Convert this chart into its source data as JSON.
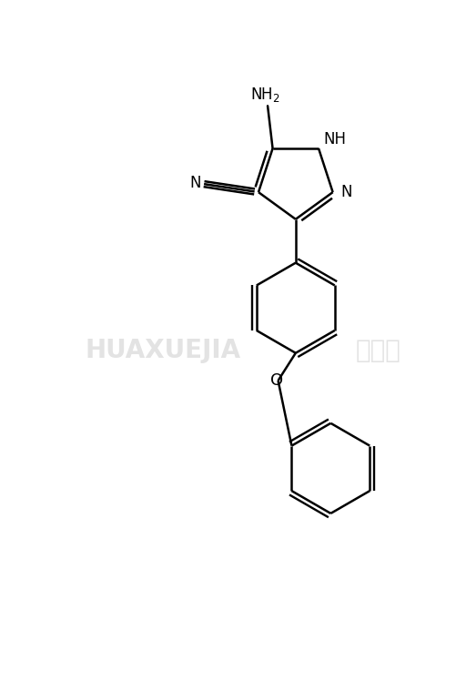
{
  "background_color": "#ffffff",
  "line_color": "#000000",
  "line_width": 1.8,
  "watermark_text": "HUAXUEJIA",
  "watermark_cn": "化学加",
  "watermark_color": "#cccccc",
  "fig_width": 5.01,
  "fig_height": 7.48,
  "dpi": 100,
  "xlim": [
    -4.0,
    5.0
  ],
  "ylim": [
    -7.5,
    3.5
  ]
}
